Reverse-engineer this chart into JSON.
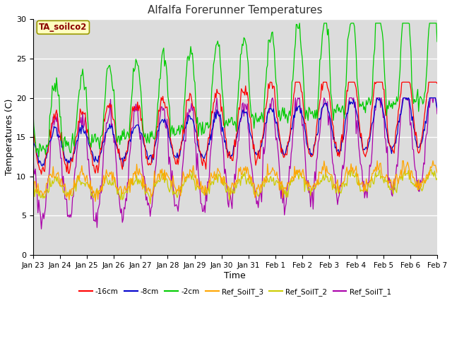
{
  "title": "Alfalfa Forerunner Temperatures",
  "xlabel": "Time",
  "ylabel": "Temperatures (C)",
  "ylim": [
    0,
    30
  ],
  "annotation": "TA_soilco2",
  "annotation_color": "#8B0000",
  "annotation_bg": "#FFFFC0",
  "series_colors": {
    "-16cm": "#FF0000",
    "-8cm": "#0000CC",
    "-2cm": "#00CC00",
    "Ref_SoilT_3": "#FFA500",
    "Ref_SoilT_2": "#CCCC00",
    "Ref_SoilT_1": "#AA00AA"
  },
  "fig_bg": "#FFFFFF",
  "plot_bg": "#DCDCDC",
  "tick_labels": [
    "Jan 23",
    "Jan 24",
    "Jan 25",
    "Jan 26",
    "Jan 27",
    "Jan 28",
    "Jan 29",
    "Jan 30",
    "Jan 31",
    "Feb 1",
    "Feb 2",
    "Feb 3",
    "Feb 4",
    "Feb 5",
    "Feb 6",
    "Feb 7"
  ],
  "n_points": 480
}
